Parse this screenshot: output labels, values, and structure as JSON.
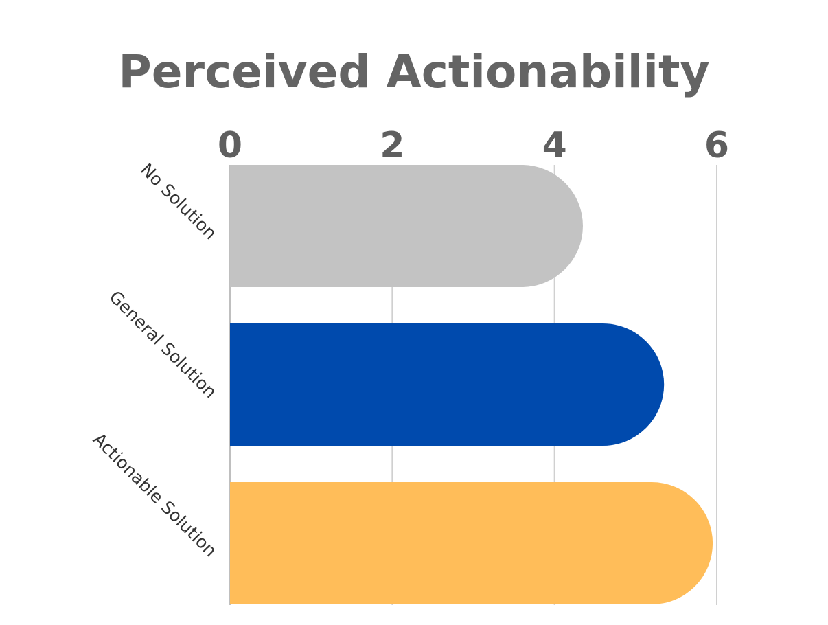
{
  "chart_data": {
    "type": "bar",
    "orientation": "horizontal",
    "title": "Perceived Actionability",
    "categories": [
      "No Solution",
      "General Solution",
      "Actionable Solution"
    ],
    "values": [
      4.35,
      5.35,
      5.95
    ],
    "colors": [
      "#c3c3c3",
      "#004aad",
      "#ffbd59"
    ],
    "xlim": [
      0,
      6
    ],
    "xticks": [
      0,
      2,
      4,
      6
    ],
    "tick_labels": [
      "0",
      "2",
      "4",
      "6"
    ],
    "tick_position": "top",
    "grid": true,
    "bar_style": "rounded-end",
    "legend": "none"
  }
}
